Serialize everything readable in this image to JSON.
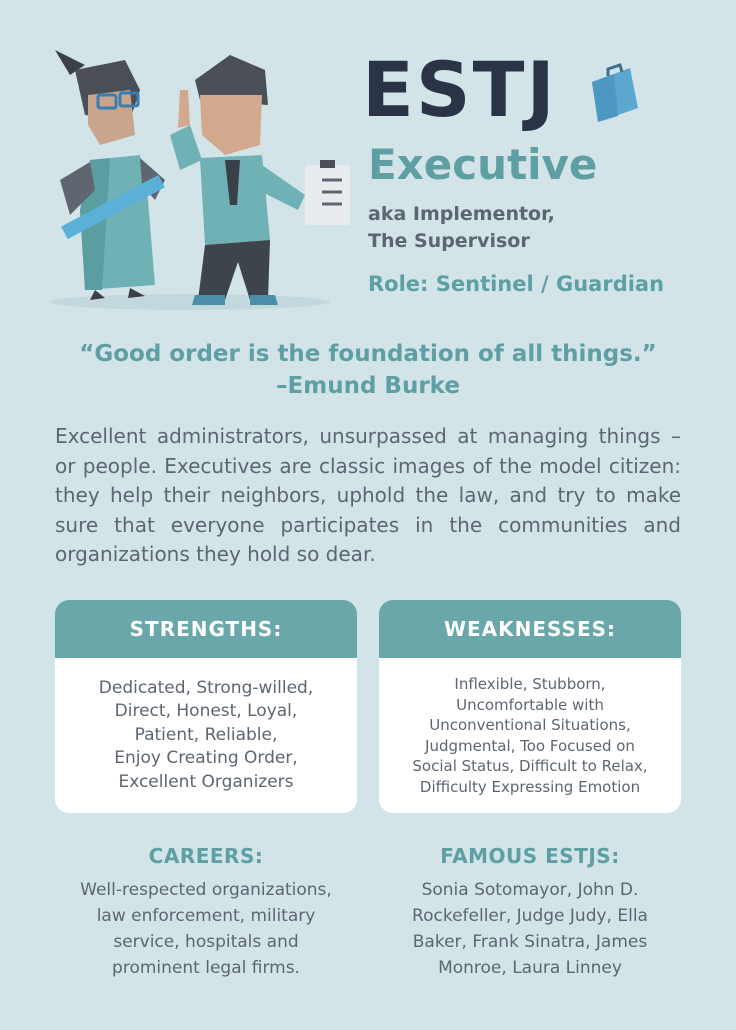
{
  "header": {
    "type_code": "ESTJ",
    "type_name": "Executive",
    "aka_lines": [
      "aka Implementor,",
      "The Supervisor"
    ],
    "role": "Role: Sentinel / Guardian"
  },
  "quote": {
    "text": "“Good order is the foundation of all things.”",
    "author": "–Emund Burke"
  },
  "description": "Excellent administrators, unsurpassed at managing things – or people. Executives are classic images of the model citizen: they help their neighbors, uphold the law, and try to make sure that everyone participates in the communities and organizations they hold so dear.",
  "strengths": {
    "title": "STRENGTHS:",
    "lines": [
      "Dedicated, Strong-willed,",
      "Direct, Honest, Loyal,",
      "Patient, Reliable,",
      "Enjoy Creating Order,",
      "Excellent Organizers"
    ]
  },
  "weaknesses": {
    "title": "WEAKNESSES:",
    "lines": [
      "Inflexible, Stubborn,",
      "Uncomfortable with",
      "Unconventional Situations,",
      "Judgmental, Too Focused on",
      "Social Status, Difficult to Relax,",
      "Difficulty Expressing Emotion"
    ]
  },
  "careers": {
    "title": "CAREERS:",
    "lines": [
      "Well-respected organizations,",
      "law enforcement, military",
      "service, hospitals and",
      "prominent legal firms."
    ]
  },
  "famous": {
    "title": "FAMOUS ESTJS:",
    "lines": [
      "Sonia Sotomayor, John D.",
      "Rockefeller, Judge Judy, Ella",
      "Baker, Frank Sinatra, James",
      "Monroe, Laura Linney"
    ]
  },
  "colors": {
    "background": "#d2e4e8",
    "accent": "#5e9fa3",
    "card_header": "#6aa7aa",
    "title_dark": "#2b3446",
    "body_text": "#5d6670"
  },
  "icons": [
    "woman-with-ruler-illustration",
    "man-with-clipboard-illustration",
    "briefcase-icon"
  ]
}
